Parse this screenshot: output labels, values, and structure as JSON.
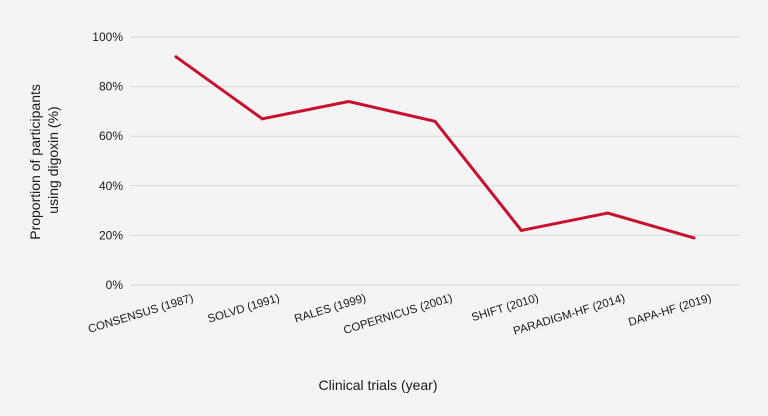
{
  "chart_data": {
    "type": "line",
    "title": "",
    "xlabel": "Clinical trials (year)",
    "ylabel_lines": [
      "Proportion of participants",
      "using digoxin (%)"
    ],
    "categories": [
      "CONSENSUS (1987)",
      "SOLVD (1991)",
      "RALES (1999)",
      "COPERNICUS (2001)",
      "SHIFT (2010)",
      "PARADIGM-HF (2014)",
      "DAPA-HF (2019)"
    ],
    "series": [
      {
        "values": [
          92,
          67,
          74,
          66,
          22,
          29,
          19
        ],
        "color": "#c8102e"
      }
    ],
    "ylim": [
      0,
      100
    ],
    "yticks": [
      0,
      20,
      40,
      60,
      80,
      100
    ],
    "ytick_labels": [
      "0%",
      "20%",
      "40%",
      "60%",
      "80%",
      "100%"
    ],
    "grid": true,
    "gridColor": "#d9d9d9",
    "background": "#f4f4f4"
  }
}
